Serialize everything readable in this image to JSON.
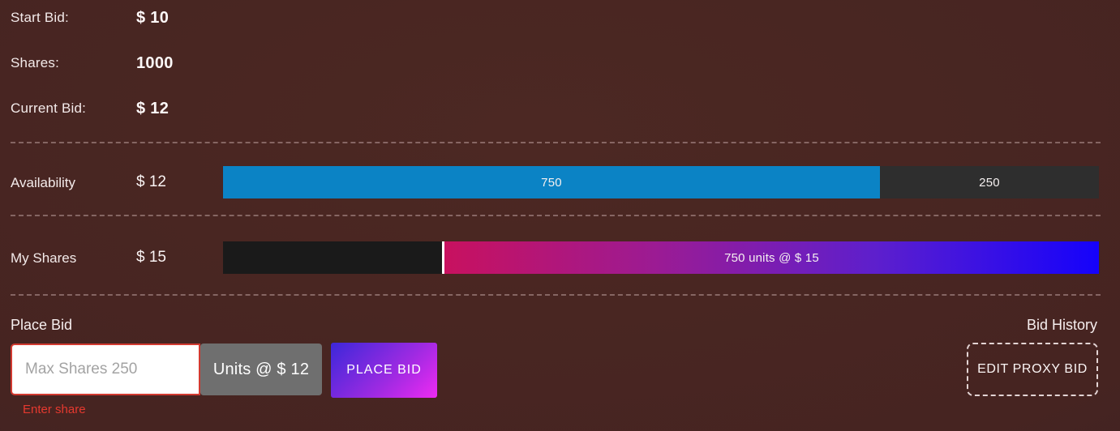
{
  "info": {
    "rows": [
      {
        "label": "Start Bid:",
        "value": "$ 10"
      },
      {
        "label": "Shares:",
        "value": "1000"
      },
      {
        "label": "Current Bid:",
        "value": "$ 12"
      }
    ]
  },
  "availability": {
    "label": "Availability",
    "price": "$ 12",
    "available_units": "750",
    "taken_units": "250",
    "available_pct": 75,
    "taken_pct": 25,
    "bar_color": "#0b83c5",
    "taken_color": "#2e2e2e"
  },
  "my_shares": {
    "label": "My Shares",
    "price": "$ 15",
    "bar_label": "750 units @ $ 15",
    "owned_units": 750,
    "owned_pct": 75,
    "empty_pct": 25,
    "gradient_start_color": "#c8115f",
    "gradient_end_color": "#1502fb"
  },
  "place_bid": {
    "title": "Place Bid",
    "input_placeholder": "Max Shares 250",
    "input_value": "",
    "units_label": "Units @ $ 12",
    "button_label": "PLACE BID",
    "error": "Enter share",
    "button_gradient_start": "#3c28d9",
    "button_gradient_end": "#ee2bf2",
    "error_color": "#e5392f"
  },
  "bid_history": {
    "title": "Bid History",
    "edit_button_label": "EDIT PROXY BID"
  }
}
